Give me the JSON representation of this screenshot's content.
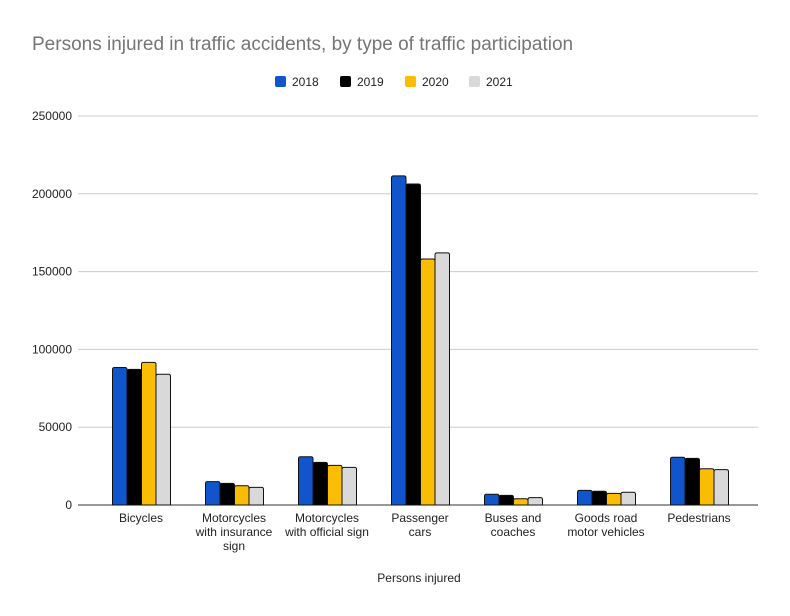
{
  "chart_data": {
    "type": "bar",
    "title": "Persons injured in traffic accidents, by type of traffic participation",
    "xlabel": "Persons injured",
    "ylabel": "",
    "ylim": [
      0,
      250000
    ],
    "yticks": [
      "0",
      "50000",
      "100000",
      "150000",
      "200000",
      "250000"
    ],
    "grid": true,
    "legend_position": "top",
    "categories": [
      [
        "Bicycles"
      ],
      [
        "Motorcycles",
        "with insurance",
        "sign"
      ],
      [
        "Motorcycles",
        "with official sign"
      ],
      [
        "Passenger",
        "cars"
      ],
      [
        "Buses and",
        "coaches"
      ],
      [
        "Goods road",
        "motor vehicles"
      ],
      [
        "Pedestrians"
      ]
    ],
    "series": [
      {
        "name": "2018",
        "color": "#1155cc",
        "values": [
          88400,
          15000,
          31000,
          211500,
          6900,
          9400,
          30700
        ]
      },
      {
        "name": "2019",
        "color": "#000000",
        "values": [
          87200,
          13900,
          27400,
          206300,
          6200,
          8800,
          30000
        ]
      },
      {
        "name": "2020",
        "color": "#fbbc04",
        "values": [
          91700,
          12400,
          25500,
          158100,
          4000,
          7500,
          23300
        ]
      },
      {
        "name": "2021",
        "color": "#d9d9d9",
        "values": [
          84000,
          11300,
          24200,
          162000,
          4700,
          8200,
          22700
        ]
      }
    ]
  }
}
